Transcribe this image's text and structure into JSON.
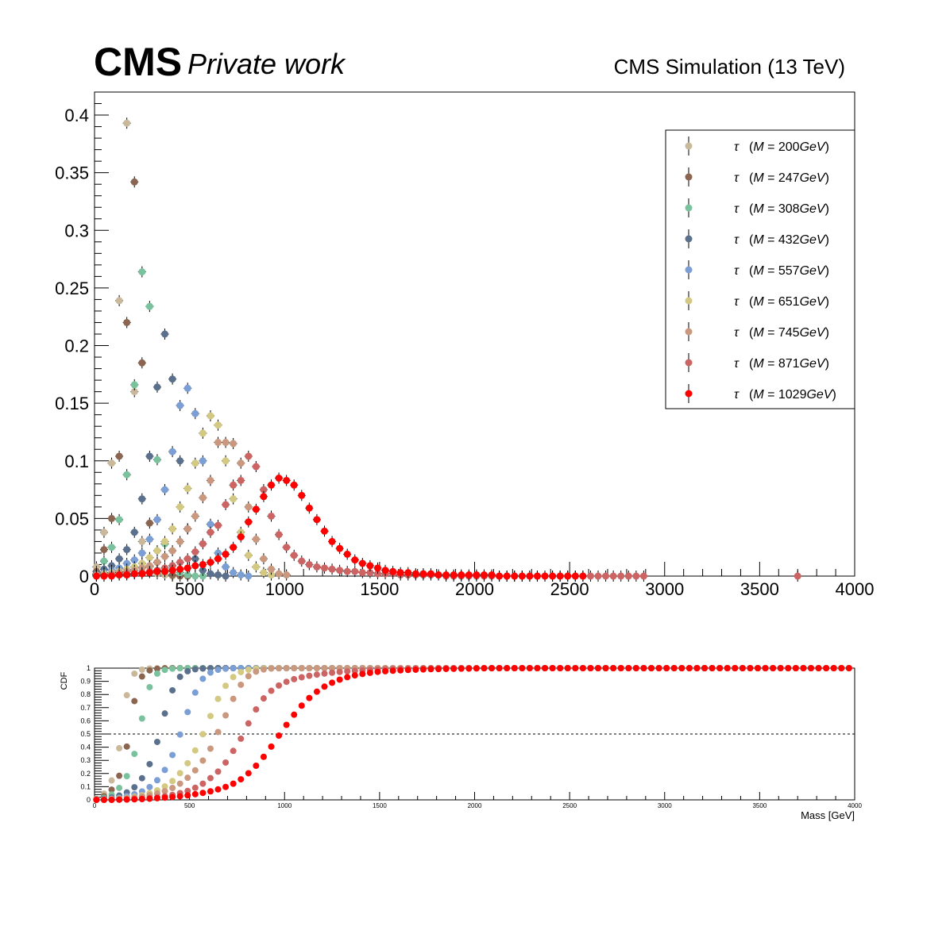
{
  "header": {
    "cms": "CMS",
    "private": "Private work",
    "simulation": "CMS Simulation (13 TeV)"
  },
  "chart_data": [
    {
      "type": "scatter",
      "panel": "main",
      "xlim": [
        0,
        4000
      ],
      "ylim": [
        0,
        0.42
      ],
      "xticks": [
        "0",
        "500",
        "1000",
        "1500",
        "2000",
        "2500",
        "3000",
        "3500",
        "4000"
      ],
      "yticks": [
        "0",
        "0.05",
        "0.1",
        "0.15",
        "0.2",
        "0.25",
        "0.3",
        "0.35",
        "0.4"
      ],
      "legend_placement": "top-right",
      "legend_symbol": "τ",
      "legend_unit": "GeV",
      "series": [
        {
          "name": "τ (M = 200 GeV)",
          "mass": "200",
          "color": "#c9b89a",
          "x": [
            10,
            50,
            90,
            130,
            170,
            210,
            250,
            290,
            330,
            370,
            410
          ],
          "y": [
            0.008,
            0.038,
            0.098,
            0.239,
            0.393,
            0.16,
            0.03,
            0.008,
            0.002,
            0.001,
            0.0
          ]
        },
        {
          "name": "τ (M = 247 GeV)",
          "mass": "247",
          "color": "#8b6550",
          "x": [
            10,
            50,
            90,
            130,
            170,
            210,
            250,
            290,
            330,
            370,
            410,
            450,
            490
          ],
          "y": [
            0.004,
            0.023,
            0.05,
            0.104,
            0.22,
            0.342,
            0.185,
            0.046,
            0.012,
            0.004,
            0.001,
            0.0,
            0.0
          ]
        },
        {
          "name": "τ (M = 308 GeV)",
          "mass": "308",
          "color": "#79c29d",
          "x": [
            10,
            50,
            90,
            130,
            170,
            210,
            250,
            290,
            330,
            370,
            410,
            450,
            490,
            530,
            570
          ],
          "y": [
            0.002,
            0.013,
            0.025,
            0.049,
            0.088,
            0.166,
            0.264,
            0.234,
            0.101,
            0.028,
            0.009,
            0.003,
            0.001,
            0.0,
            0.0
          ]
        },
        {
          "name": "τ (M = 432 GeV)",
          "mass": "432",
          "color": "#5a708c",
          "x": [
            10,
            50,
            90,
            130,
            170,
            210,
            250,
            290,
            330,
            370,
            410,
            450,
            490,
            530,
            570,
            610,
            650,
            690
          ],
          "y": [
            0.002,
            0.006,
            0.009,
            0.015,
            0.023,
            0.038,
            0.067,
            0.104,
            0.164,
            0.21,
            0.171,
            0.1,
            0.041,
            0.015,
            0.005,
            0.002,
            0.001,
            0.0
          ]
        },
        {
          "name": "τ (M = 557 GeV)",
          "mass": "557",
          "color": "#7b9ed4",
          "x": [
            10,
            50,
            90,
            130,
            170,
            210,
            250,
            290,
            330,
            370,
            410,
            450,
            490,
            530,
            570,
            610,
            650,
            690,
            730,
            770,
            810
          ],
          "y": [
            0.001,
            0.003,
            0.005,
            0.007,
            0.011,
            0.014,
            0.02,
            0.032,
            0.049,
            0.075,
            0.108,
            0.148,
            0.163,
            0.141,
            0.1,
            0.045,
            0.02,
            0.008,
            0.003,
            0.001,
            0.0
          ]
        },
        {
          "name": "τ (M = 651 GeV)",
          "mass": "651",
          "color": "#d4c982",
          "x": [
            10,
            50,
            90,
            130,
            170,
            210,
            250,
            290,
            330,
            370,
            410,
            450,
            490,
            530,
            570,
            610,
            650,
            690,
            730,
            770,
            810,
            850,
            890,
            930
          ],
          "y": [
            0.001,
            0.002,
            0.003,
            0.004,
            0.006,
            0.008,
            0.011,
            0.016,
            0.022,
            0.03,
            0.041,
            0.06,
            0.076,
            0.098,
            0.124,
            0.139,
            0.131,
            0.1,
            0.067,
            0.038,
            0.018,
            0.008,
            0.003,
            0.001
          ]
        },
        {
          "name": "τ (M = 745 GeV)",
          "mass": "745",
          "color": "#c9987e",
          "x": [
            10,
            50,
            90,
            130,
            170,
            210,
            250,
            290,
            330,
            370,
            410,
            450,
            490,
            530,
            570,
            610,
            650,
            690,
            730,
            770,
            810,
            850,
            890,
            930,
            970,
            1010
          ],
          "y": [
            0.001,
            0.001,
            0.002,
            0.003,
            0.004,
            0.005,
            0.007,
            0.009,
            0.012,
            0.017,
            0.022,
            0.03,
            0.041,
            0.052,
            0.068,
            0.083,
            0.116,
            0.116,
            0.115,
            0.098,
            0.06,
            0.032,
            0.015,
            0.006,
            0.002,
            0.001
          ]
        },
        {
          "name": "τ (M = 871 GeV)",
          "mass": "871",
          "color": "#cd6464",
          "x": [
            10,
            50,
            90,
            130,
            170,
            210,
            250,
            290,
            330,
            370,
            410,
            450,
            490,
            530,
            570,
            610,
            650,
            690,
            730,
            770,
            810,
            850,
            890,
            930,
            970,
            1010,
            1050,
            1090,
            1130,
            1170,
            1210,
            1250,
            1290,
            1330,
            1370,
            1410,
            1450,
            1490,
            1530,
            1570,
            1610,
            1650,
            1690,
            1730,
            1770,
            1810,
            1850,
            1890,
            1930,
            1970,
            2010,
            2050,
            2090,
            2130,
            2170,
            2210,
            2250,
            2290,
            2330,
            2370,
            2410,
            2450,
            2490,
            2530,
            2570,
            2610,
            2650,
            2690,
            2730,
            2770,
            2810,
            2850,
            2890,
            3700
          ],
          "y": [
            0.0,
            0.0,
            0.001,
            0.001,
            0.002,
            0.002,
            0.003,
            0.004,
            0.005,
            0.007,
            0.009,
            0.012,
            0.015,
            0.021,
            0.028,
            0.038,
            0.044,
            0.062,
            0.079,
            0.083,
            0.104,
            0.095,
            0.075,
            0.052,
            0.036,
            0.025,
            0.018,
            0.013,
            0.01,
            0.008,
            0.007,
            0.006,
            0.005,
            0.004,
            0.004,
            0.003,
            0.003,
            0.002,
            0.002,
            0.002,
            0.001,
            0.001,
            0.001,
            0.001,
            0.001,
            0.001,
            0.0,
            0.0,
            0.0,
            0.0,
            0.0,
            0.0,
            0.0,
            0.0,
            0.0,
            0.0,
            0.0,
            0.0,
            0.0,
            0.0,
            0.0,
            0.0,
            0.0,
            0.0,
            0.0,
            0.0,
            0.0,
            0.0,
            0.0,
            0.0,
            0.0,
            0.0,
            0.0,
            0.0
          ]
        },
        {
          "name": "τ (M = 1029 GeV)",
          "mass": "1029",
          "color": "#ff0000",
          "x": [
            10,
            50,
            90,
            130,
            170,
            210,
            250,
            290,
            330,
            370,
            410,
            450,
            490,
            530,
            570,
            610,
            650,
            690,
            730,
            770,
            810,
            850,
            890,
            930,
            970,
            1010,
            1050,
            1090,
            1130,
            1170,
            1210,
            1250,
            1290,
            1330,
            1370,
            1410,
            1450,
            1490,
            1530,
            1570,
            1610,
            1650,
            1690,
            1730,
            1770,
            1810,
            1850,
            1890,
            1930,
            1970,
            2010,
            2050,
            2090,
            2130,
            2170,
            2210,
            2250,
            2290,
            2330,
            2370,
            2410,
            2450,
            2490,
            2530,
            2570
          ],
          "y": [
            0.0,
            0.0,
            0.0,
            0.001,
            0.001,
            0.002,
            0.002,
            0.003,
            0.004,
            0.004,
            0.005,
            0.006,
            0.007,
            0.009,
            0.01,
            0.012,
            0.015,
            0.019,
            0.025,
            0.034,
            0.047,
            0.058,
            0.069,
            0.079,
            0.085,
            0.083,
            0.079,
            0.07,
            0.059,
            0.049,
            0.039,
            0.03,
            0.024,
            0.019,
            0.014,
            0.011,
            0.009,
            0.007,
            0.005,
            0.004,
            0.003,
            0.003,
            0.002,
            0.002,
            0.002,
            0.001,
            0.001,
            0.001,
            0.001,
            0.001,
            0.001,
            0.001,
            0.001,
            0.0,
            0.0,
            0.0,
            0.0,
            0.0,
            0.0,
            0.0,
            0.0,
            0.0,
            0.0,
            0.0,
            0.0
          ]
        }
      ]
    },
    {
      "type": "scatter",
      "panel": "ratio",
      "ylabel": "CDF",
      "xlabel": "Mass [GeV]",
      "xlim": [
        0,
        4000
      ],
      "ylim": [
        0,
        1.0
      ],
      "xticks": [
        "0",
        "500",
        "1000",
        "1500",
        "2000",
        "2500",
        "3000",
        "3500",
        "4000"
      ],
      "yticks": [
        "0",
        "0.1",
        "0.2",
        "0.3",
        "0.4",
        "0.5",
        "0.6",
        "0.7",
        "0.8",
        "0.9",
        "1"
      ],
      "reference_line": 0.5,
      "cdf_from": "main",
      "cdf_x_max": 4000,
      "cdf_x_step": 40
    }
  ]
}
